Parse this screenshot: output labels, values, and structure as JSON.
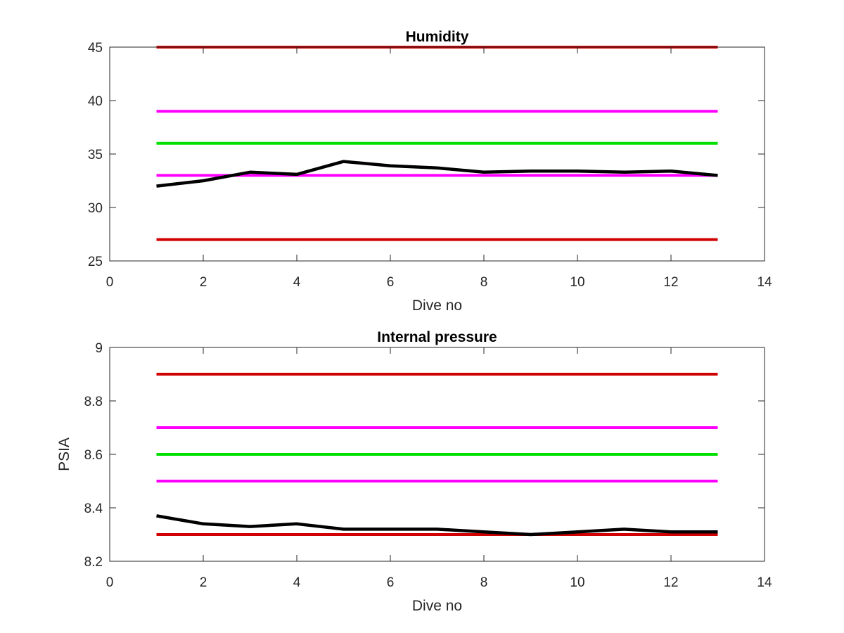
{
  "colors": {
    "data_line": "#000000",
    "outer_limit": "#d00000",
    "warning_limit": "#ff00ff",
    "target": "#00e000",
    "axes": "#262626"
  },
  "chart_data": [
    {
      "type": "line",
      "title": "Humidity",
      "xlabel": "Dive no",
      "ylabel": "",
      "xlim": [
        0,
        14
      ],
      "ylim": [
        25,
        45
      ],
      "xticks": [
        "0",
        "2",
        "4",
        "6",
        "8",
        "10",
        "12",
        "14"
      ],
      "yticks": [
        "25",
        "30",
        "35",
        "40",
        "45"
      ],
      "grid": false,
      "series": [
        {
          "role": "data",
          "color": "#000000",
          "x": [
            1,
            2,
            3,
            4,
            5,
            6,
            7,
            8,
            9,
            10,
            11,
            12,
            13
          ],
          "y": [
            32.0,
            32.5,
            33.3,
            33.1,
            34.3,
            33.9,
            33.7,
            33.3,
            33.4,
            33.4,
            33.3,
            33.4,
            33.0
          ]
        },
        {
          "role": "limit",
          "color": "#d00000",
          "x": [
            1,
            13
          ],
          "y": [
            45,
            45
          ]
        },
        {
          "role": "limit",
          "color": "#ff00ff",
          "x": [
            1,
            13
          ],
          "y": [
            39,
            39
          ]
        },
        {
          "role": "limit",
          "color": "#00e000",
          "x": [
            1,
            13
          ],
          "y": [
            36,
            36
          ]
        },
        {
          "role": "limit",
          "color": "#ff00ff",
          "x": [
            1,
            13
          ],
          "y": [
            33,
            33
          ]
        },
        {
          "role": "limit",
          "color": "#d00000",
          "x": [
            1,
            13
          ],
          "y": [
            27,
            27
          ]
        }
      ]
    },
    {
      "type": "line",
      "title": "Internal pressure",
      "xlabel": "Dive no",
      "ylabel": "PSIA",
      "xlim": [
        0,
        14
      ],
      "ylim": [
        8.2,
        9
      ],
      "xticks": [
        "0",
        "2",
        "4",
        "6",
        "8",
        "10",
        "12",
        "14"
      ],
      "yticks": [
        "8.2",
        "8.4",
        "8.6",
        "8.8",
        "9"
      ],
      "grid": false,
      "series": [
        {
          "role": "data",
          "color": "#000000",
          "x": [
            1,
            2,
            3,
            4,
            5,
            6,
            7,
            8,
            9,
            10,
            11,
            12,
            13
          ],
          "y": [
            8.37,
            8.34,
            8.33,
            8.34,
            8.32,
            8.32,
            8.32,
            8.31,
            8.3,
            8.31,
            8.32,
            8.31,
            8.31
          ]
        },
        {
          "role": "limit",
          "color": "#d00000",
          "x": [
            1,
            13
          ],
          "y": [
            8.9,
            8.9
          ]
        },
        {
          "role": "limit",
          "color": "#ff00ff",
          "x": [
            1,
            13
          ],
          "y": [
            8.7,
            8.7
          ]
        },
        {
          "role": "limit",
          "color": "#00e000",
          "x": [
            1,
            13
          ],
          "y": [
            8.6,
            8.6
          ]
        },
        {
          "role": "limit",
          "color": "#ff00ff",
          "x": [
            1,
            13
          ],
          "y": [
            8.5,
            8.5
          ]
        },
        {
          "role": "limit",
          "color": "#d00000",
          "x": [
            1,
            13
          ],
          "y": [
            8.3,
            8.3
          ]
        }
      ]
    }
  ]
}
